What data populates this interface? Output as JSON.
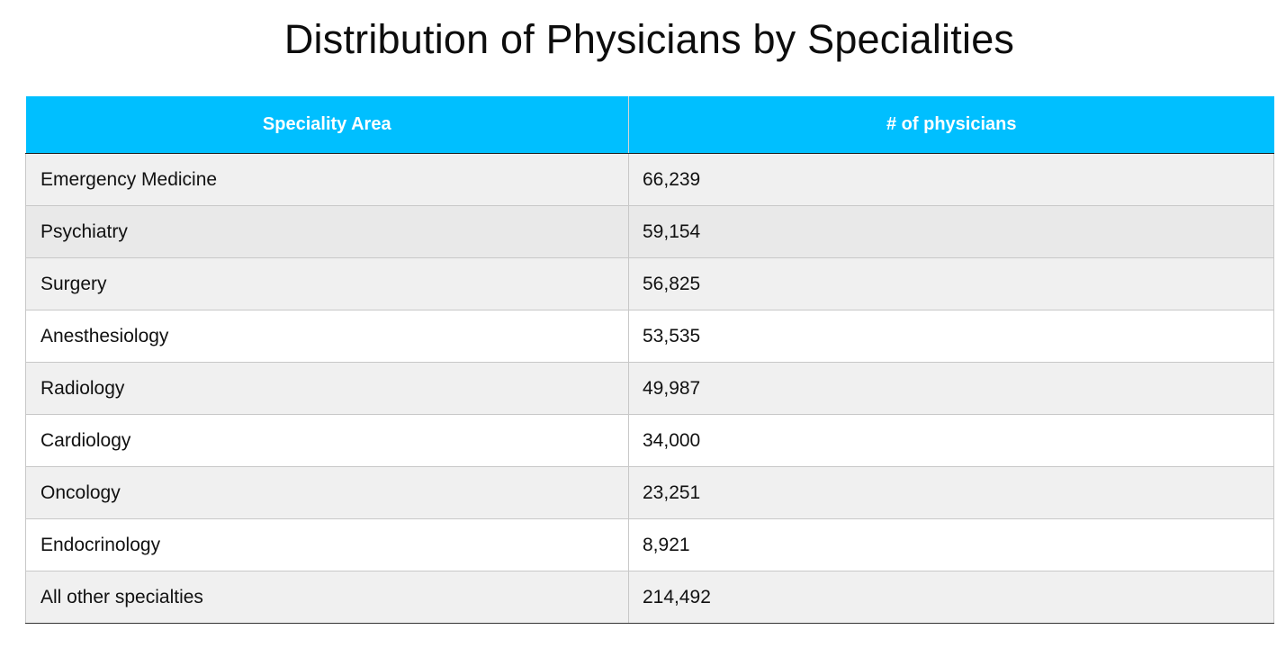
{
  "title": "Distribution of Physicians by Specialities",
  "colors": {
    "header_bg": "#00BFFF",
    "header_text": "#FFFFFF",
    "row_shaded": "#F0F0F0",
    "row_shaded_alt": "#E9E9E9",
    "row_plain": "#FFFFFF",
    "grid": "#C8C8C8"
  },
  "table": {
    "headers": [
      "Speciality Area",
      "# of physicians"
    ],
    "rows": [
      {
        "area": "Emergency Medicine",
        "count": "66,239",
        "shade": "#F0F0F0"
      },
      {
        "area": "Psychiatry",
        "count": "59,154",
        "shade": "#E9E9E9"
      },
      {
        "area": "Surgery",
        "count": "56,825",
        "shade": "#F0F0F0"
      },
      {
        "area": "Anesthesiology",
        "count": "53,535",
        "shade": "#FFFFFF"
      },
      {
        "area": "Radiology",
        "count": "49,987",
        "shade": "#F0F0F0"
      },
      {
        "area": "Cardiology",
        "count": "34,000",
        "shade": "#FFFFFF"
      },
      {
        "area": "Oncology",
        "count": "23,251",
        "shade": "#F0F0F0"
      },
      {
        "area": "Endocrinology",
        "count": "8,921",
        "shade": "#FFFFFF"
      },
      {
        "area": "All other specialties",
        "count": "214,492",
        "shade": "#F0F0F0"
      }
    ]
  }
}
